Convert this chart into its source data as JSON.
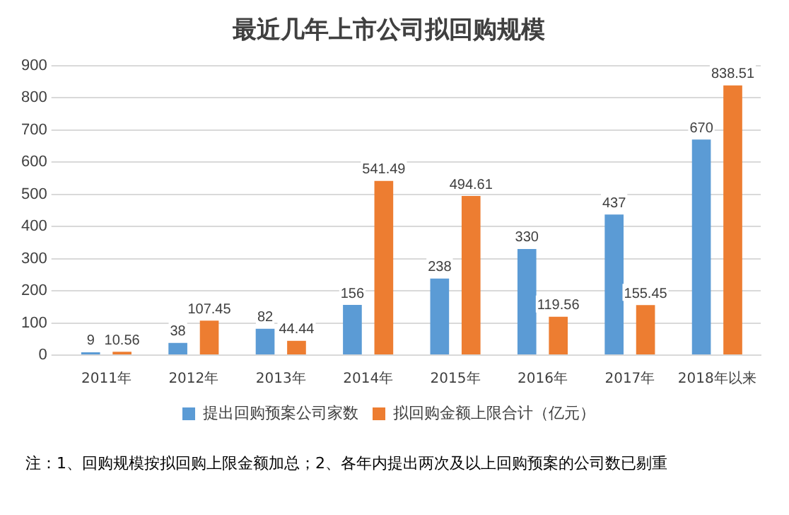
{
  "chart_data": {
    "type": "bar",
    "title": "最近几年上市公司拟回购规模",
    "categories": [
      "2011年",
      "2012年",
      "2013年",
      "2014年",
      "2015年",
      "2016年",
      "2017年",
      "2018年以来"
    ],
    "series": [
      {
        "name": "提出回购预案公司家数",
        "color": "#5b9bd5",
        "values": [
          9,
          38,
          82,
          156,
          238,
          330,
          437,
          670
        ]
      },
      {
        "name": "拟回购金额上限合计（亿元）",
        "color": "#ed7d31",
        "values": [
          10.56,
          107.45,
          44.44,
          541.49,
          494.61,
          119.56,
          155.45,
          838.51
        ]
      }
    ],
    "ylim": [
      0,
      900
    ],
    "yticks": [
      0,
      100,
      200,
      300,
      400,
      500,
      600,
      700,
      800,
      900
    ],
    "grid": "y",
    "legend": "bottom",
    "data_labels": true,
    "annotations": [
      "注：1、回购规模按拟回购上限金额加总；2、各年内提出两次及以上回购预案的公司数已剔重"
    ]
  }
}
